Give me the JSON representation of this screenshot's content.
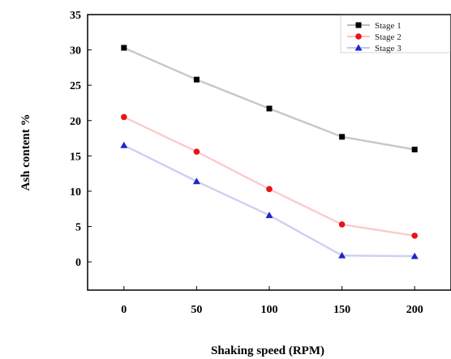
{
  "chart_data": {
    "type": "line",
    "xlabel": "Shaking speed (RPM)",
    "ylabel": "Ash content %",
    "x": [
      0,
      50,
      100,
      150,
      200
    ],
    "x_ticks": [
      "0",
      "50",
      "100",
      "150",
      "200"
    ],
    "y_ticks": [
      "0",
      "5",
      "10",
      "15",
      "20",
      "25",
      "30",
      "35"
    ],
    "xlim": [
      -25,
      225
    ],
    "ylim": [
      -4,
      35
    ],
    "grid": false,
    "legend_position": "top-right",
    "series": [
      {
        "name": "Stage 1",
        "values": [
          30.3,
          25.8,
          21.7,
          17.7,
          15.9
        ],
        "color": "#000000",
        "marker": "square"
      },
      {
        "name": "Stage 2",
        "values": [
          20.5,
          15.6,
          10.3,
          5.3,
          3.7
        ],
        "color": "#e8141a",
        "marker": "circle"
      },
      {
        "name": "Stage 3",
        "values": [
          16.5,
          11.4,
          6.6,
          0.9,
          0.8
        ],
        "color": "#1f26c9",
        "marker": "triangle"
      }
    ]
  }
}
